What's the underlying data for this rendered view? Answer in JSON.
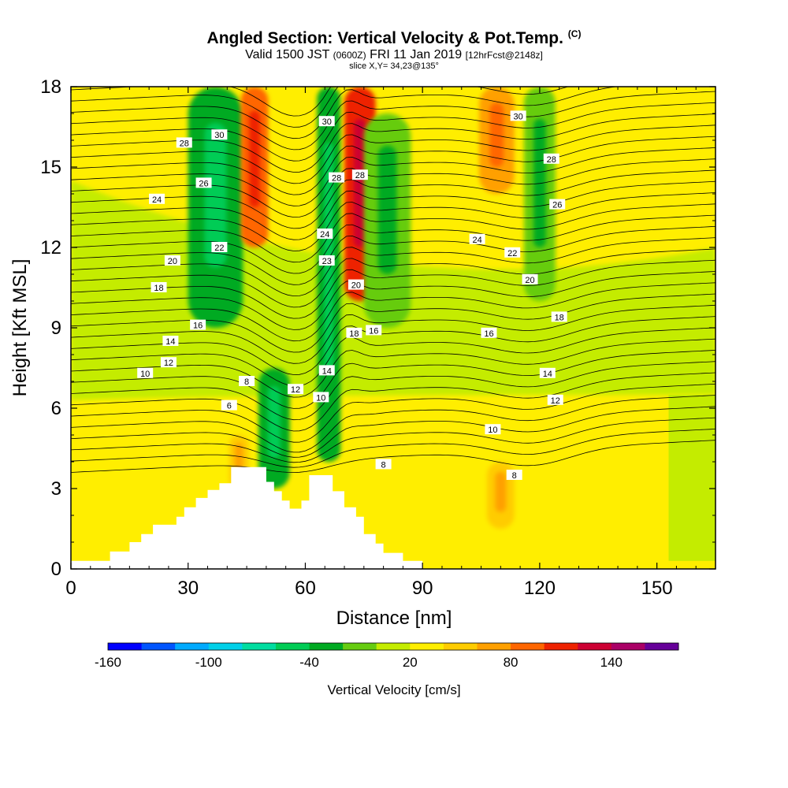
{
  "header": {
    "title": "Angled Section: Vertical Velocity & Pot.Temp.",
    "title_suffix": "(C)",
    "valid_prefix": "Valid 1500 JST",
    "valid_zulu": "(0600Z)",
    "valid_date": "FRI 11 Jan 2019",
    "forecast": "[12hrFcst@2148z]",
    "slice": "slice X,Y= 34,23@135°"
  },
  "chart_data": {
    "type": "heatmap",
    "xlabel": "Distance [nm]",
    "ylabel": "Height [Kft MSL]",
    "xlim": [
      0,
      165
    ],
    "ylim": [
      0,
      18
    ],
    "x_ticks": [
      0,
      30,
      60,
      90,
      120,
      150
    ],
    "y_ticks": [
      0,
      3,
      6,
      9,
      12,
      15,
      18
    ],
    "colorbar": {
      "label": "Vertical Velocity [cm/s]",
      "tick_labels": [
        -160,
        -100,
        -40,
        20,
        80,
        140
      ],
      "bins": [
        {
          "from": -160,
          "to": -140,
          "color": "#0000ff"
        },
        {
          "from": -140,
          "to": -120,
          "color": "#0055ff"
        },
        {
          "from": -120,
          "to": -100,
          "color": "#00aaff"
        },
        {
          "from": -100,
          "to": -80,
          "color": "#00d0e8"
        },
        {
          "from": -80,
          "to": -60,
          "color": "#00dda0"
        },
        {
          "from": -60,
          "to": -40,
          "color": "#00cc55"
        },
        {
          "from": -40,
          "to": -20,
          "color": "#00aa22"
        },
        {
          "from": -20,
          "to": 0,
          "color": "#66cc11"
        },
        {
          "from": 0,
          "to": 20,
          "color": "#c4ec00"
        },
        {
          "from": 20,
          "to": 40,
          "color": "#ffee00"
        },
        {
          "from": 40,
          "to": 60,
          "color": "#ffcc00"
        },
        {
          "from": 60,
          "to": 80,
          "color": "#ffa000"
        },
        {
          "from": 80,
          "to": 100,
          "color": "#ff6600"
        },
        {
          "from": 100,
          "to": 120,
          "color": "#ee2200"
        },
        {
          "from": 120,
          "to": 140,
          "color": "#cc0033"
        },
        {
          "from": 140,
          "to": 160,
          "color": "#aa0066"
        },
        {
          "from": 160,
          "to": 180,
          "color": "#660099"
        }
      ]
    },
    "velocity_features": [
      {
        "x": 37,
        "width": 14,
        "y0": 9,
        "y1": 18,
        "value": -30
      },
      {
        "x": 52,
        "width": 8,
        "y0": 3,
        "y1": 7.5,
        "value": -40
      },
      {
        "x": 66,
        "width": 6,
        "y0": 4,
        "y1": 18,
        "value": -40
      },
      {
        "x": 47,
        "width": 7,
        "y0": 12,
        "y1": 18,
        "value": 90
      },
      {
        "x": 74,
        "width": 8,
        "y0": 10,
        "y1": 18,
        "value": 100
      },
      {
        "x": 109,
        "width": 9,
        "y0": 14,
        "y1": 18,
        "value": 60
      },
      {
        "x": 81,
        "width": 12,
        "y0": 9,
        "y1": 17,
        "value": -20
      },
      {
        "x": 120,
        "width": 8,
        "y0": 10,
        "y1": 18,
        "value": -20
      },
      {
        "x": 110,
        "width": 7,
        "y0": 1.5,
        "y1": 4,
        "value": 50
      },
      {
        "x": 43,
        "width": 5,
        "y0": 3,
        "y1": 5,
        "value": 50
      }
    ],
    "terrain": [
      [
        0,
        0.3
      ],
      [
        10,
        0.3
      ],
      [
        10,
        0.65
      ],
      [
        15,
        0.65
      ],
      [
        15,
        1.0
      ],
      [
        18,
        1.0
      ],
      [
        18,
        1.3
      ],
      [
        21,
        1.3
      ],
      [
        21,
        1.65
      ],
      [
        27,
        1.65
      ],
      [
        27,
        1.95
      ],
      [
        29,
        1.95
      ],
      [
        29,
        2.3
      ],
      [
        32,
        2.3
      ],
      [
        32,
        2.65
      ],
      [
        35,
        2.65
      ],
      [
        35,
        2.95
      ],
      [
        38,
        2.95
      ],
      [
        38,
        3.2
      ],
      [
        41,
        3.2
      ],
      [
        41,
        3.8
      ],
      [
        50,
        3.8
      ],
      [
        50,
        3.25
      ],
      [
        52,
        3.25
      ],
      [
        52,
        2.9
      ],
      [
        54,
        2.9
      ],
      [
        54,
        2.55
      ],
      [
        56,
        2.55
      ],
      [
        56,
        2.25
      ],
      [
        59,
        2.25
      ],
      [
        59,
        2.55
      ],
      [
        61,
        2.55
      ],
      [
        61,
        3.5
      ],
      [
        67,
        3.5
      ],
      [
        67,
        2.9
      ],
      [
        70,
        2.9
      ],
      [
        70,
        2.3
      ],
      [
        73,
        2.3
      ],
      [
        73,
        1.95
      ],
      [
        75,
        1.95
      ],
      [
        75,
        1.3
      ],
      [
        78,
        1.3
      ],
      [
        78,
        0.95
      ],
      [
        80,
        0.95
      ],
      [
        80,
        0.6
      ],
      [
        85,
        0.6
      ],
      [
        85,
        0.3
      ],
      [
        90,
        0.3
      ],
      [
        90,
        0
      ]
    ],
    "theta_labels": [
      {
        "value": 6,
        "x": 40.5,
        "y": 6.1
      },
      {
        "value": 8,
        "x": 45,
        "y": 7.0
      },
      {
        "value": 10,
        "x": 19,
        "y": 7.3
      },
      {
        "value": 12,
        "x": 25,
        "y": 7.7
      },
      {
        "value": 14,
        "x": 25.5,
        "y": 8.5
      },
      {
        "value": 16,
        "x": 32.5,
        "y": 9.1
      },
      {
        "value": 18,
        "x": 22.5,
        "y": 10.5
      },
      {
        "value": 20,
        "x": 26,
        "y": 11.5
      },
      {
        "value": 22,
        "x": 38,
        "y": 12.0
      },
      {
        "value": 24,
        "x": 22,
        "y": 13.8
      },
      {
        "value": 26,
        "x": 34,
        "y": 14.4
      },
      {
        "value": 28,
        "x": 29,
        "y": 15.9
      },
      {
        "value": 30,
        "x": 38,
        "y": 16.2
      },
      {
        "value": 12,
        "x": 57.5,
        "y": 6.7
      },
      {
        "value": 10,
        "x": 64,
        "y": 6.4
      },
      {
        "value": 14,
        "x": 65.5,
        "y": 7.4
      },
      {
        "value": 16,
        "x": 77.5,
        "y": 8.9
      },
      {
        "value": 18,
        "x": 72.5,
        "y": 8.8
      },
      {
        "value": 20,
        "x": 73,
        "y": 10.6
      },
      {
        "value": 23,
        "x": 65.5,
        "y": 11.5
      },
      {
        "value": 24,
        "x": 65,
        "y": 12.5
      },
      {
        "value": 28,
        "x": 68,
        "y": 14.6
      },
      {
        "value": 28,
        "x": 74,
        "y": 14.7
      },
      {
        "value": 30,
        "x": 65.5,
        "y": 16.7
      },
      {
        "value": 8,
        "x": 80,
        "y": 3.9
      },
      {
        "value": 10,
        "x": 108,
        "y": 5.2
      },
      {
        "value": 12,
        "x": 124,
        "y": 6.3
      },
      {
        "value": 14,
        "x": 122,
        "y": 7.3
      },
      {
        "value": 16,
        "x": 107,
        "y": 8.8
      },
      {
        "value": 18,
        "x": 125,
        "y": 9.4
      },
      {
        "value": 20,
        "x": 117.5,
        "y": 10.8
      },
      {
        "value": 22,
        "x": 113,
        "y": 11.8
      },
      {
        "value": 24,
        "x": 104,
        "y": 12.3
      },
      {
        "value": 26,
        "x": 124.5,
        "y": 13.6
      },
      {
        "value": 28,
        "x": 123,
        "y": 15.3
      },
      {
        "value": 30,
        "x": 114.5,
        "y": 16.9
      },
      {
        "value": 8,
        "x": 113.5,
        "y": 3.5
      }
    ]
  }
}
